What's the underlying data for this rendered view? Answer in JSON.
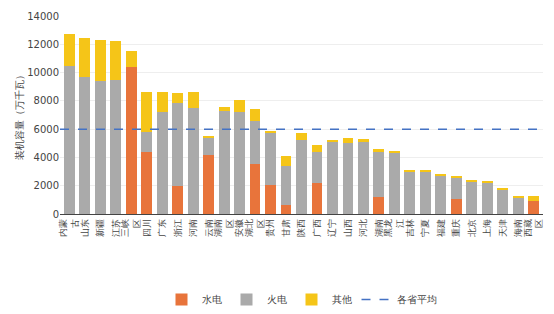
{
  "chart_data": {
    "type": "bar",
    "stacked": true,
    "categories": [
      "内蒙\n古",
      "山东",
      "新疆",
      "江苏",
      "三峡\n区",
      "四川",
      "广东",
      "浙江",
      "河南",
      "云南",
      "湖南\n区",
      "安徽",
      "湖北\n区",
      "贵州",
      "甘肃",
      "陕西",
      "广西",
      "辽宁",
      "山西",
      "河北",
      "湖南",
      "黑龙\n江",
      "吉林",
      "宁夏",
      "福建",
      "重庆",
      "北京",
      "上海",
      "天津",
      "海南",
      "西藏\n区"
    ],
    "series": [
      {
        "name": "水电",
        "color": "#E8743B",
        "values": [
          0,
          0,
          0,
          0,
          10400,
          4400,
          0,
          1950,
          0,
          4200,
          0,
          0,
          3550,
          2050,
          650,
          0,
          2200,
          0,
          0,
          0,
          1200,
          0,
          0,
          0,
          0,
          1050,
          0,
          0,
          0,
          0,
          900
        ]
      },
      {
        "name": "火电",
        "color": "#AAAAAA",
        "values": [
          10500,
          9700,
          9400,
          9500,
          0,
          1400,
          7200,
          5900,
          7500,
          1150,
          7250,
          7200,
          3000,
          3700,
          2750,
          5200,
          2200,
          5100,
          5000,
          5100,
          3200,
          4350,
          3000,
          3000,
          2700,
          1550,
          2300,
          2250,
          1700,
          1100,
          0
        ]
      },
      {
        "name": "其他",
        "color": "#F5C518",
        "values": [
          2200,
          2750,
          2900,
          2750,
          1100,
          2850,
          1450,
          700,
          1100,
          200,
          300,
          850,
          900,
          150,
          700,
          500,
          500,
          150,
          400,
          200,
          200,
          100,
          100,
          100,
          150,
          100,
          100,
          100,
          100,
          150,
          400
        ]
      }
    ],
    "average": {
      "name": "各省平均",
      "value": 6000,
      "color": "#4472C4",
      "line_style": "dashed"
    },
    "ylabel": "装机容量（万千瓦）",
    "ylim": [
      0,
      14000
    ],
    "yticks": [
      0,
      2000,
      4000,
      6000,
      8000,
      10000,
      12000,
      14000
    ],
    "grid": true,
    "legend": "bottom"
  }
}
